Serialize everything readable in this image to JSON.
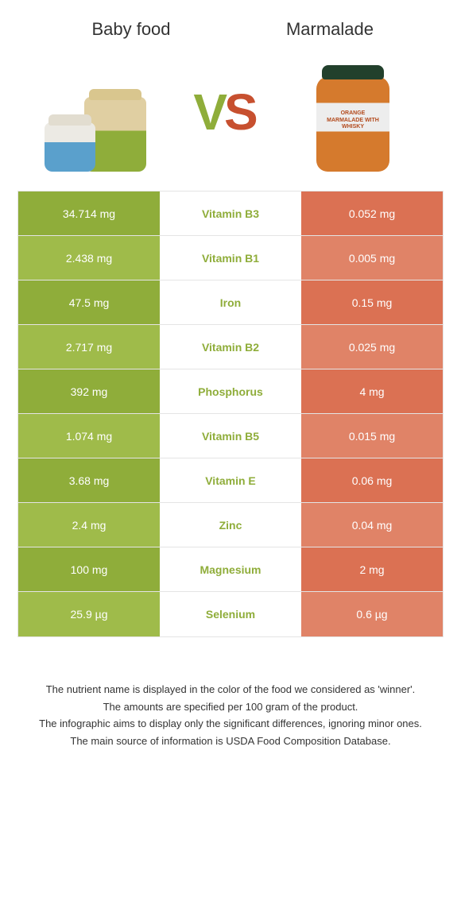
{
  "colors": {
    "left_dark": "#8fad3a",
    "left_light": "#9fbb4a",
    "right_dark": "#db7153",
    "right_light": "#e08367",
    "winner_left": "#8fad3a",
    "winner_right": "#db7153"
  },
  "header": {
    "left": "Baby food",
    "right": "Marmalade"
  },
  "vs": {
    "v": "V",
    "s": "S"
  },
  "rows": [
    {
      "left": "34.714 mg",
      "mid": "Vitamin B3",
      "right": "0.052 mg",
      "winner": "left"
    },
    {
      "left": "2.438 mg",
      "mid": "Vitamin B1",
      "right": "0.005 mg",
      "winner": "left"
    },
    {
      "left": "47.5 mg",
      "mid": "Iron",
      "right": "0.15 mg",
      "winner": "left"
    },
    {
      "left": "2.717 mg",
      "mid": "Vitamin B2",
      "right": "0.025 mg",
      "winner": "left"
    },
    {
      "left": "392 mg",
      "mid": "Phosphorus",
      "right": "4 mg",
      "winner": "left"
    },
    {
      "left": "1.074 mg",
      "mid": "Vitamin B5",
      "right": "0.015 mg",
      "winner": "left"
    },
    {
      "left": "3.68 mg",
      "mid": "Vitamin E",
      "right": "0.06 mg",
      "winner": "left"
    },
    {
      "left": "2.4 mg",
      "mid": "Zinc",
      "right": "0.04 mg",
      "winner": "left"
    },
    {
      "left": "100 mg",
      "mid": "Magnesium",
      "right": "2 mg",
      "winner": "left"
    },
    {
      "left": "25.9 µg",
      "mid": "Selenium",
      "right": "0.6 µg",
      "winner": "left"
    }
  ],
  "footnotes": [
    "The nutrient name is displayed in the color of the food we considered as 'winner'.",
    "The amounts are specified per 100 gram of the product.",
    "The infographic aims to display only the significant differences, ignoring minor ones.",
    "The main source of information is USDA Food Composition Database."
  ],
  "marmalade_label": "ORANGE\nMARMALADE\nWITH WHISKY"
}
